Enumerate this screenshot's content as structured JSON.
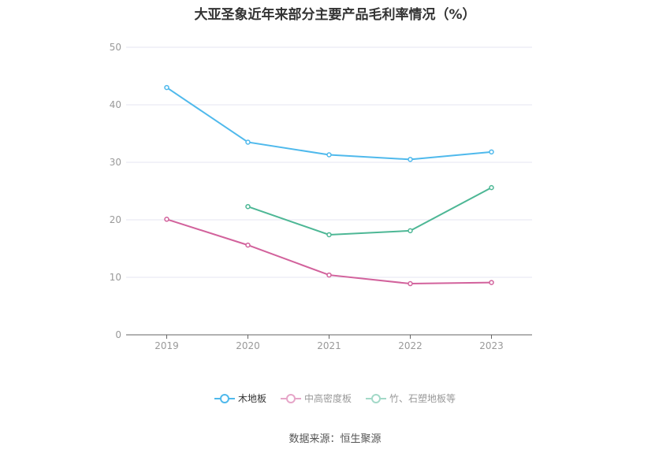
{
  "title": "大亚圣象近年来部分主要产品毛利率情况（%）",
  "source": "数据来源：恒生聚源",
  "chart_data": {
    "type": "line",
    "categories": [
      "2019",
      "2020",
      "2021",
      "2022",
      "2023"
    ],
    "ylim": [
      0,
      50
    ],
    "yticks": [
      0,
      10,
      20,
      30,
      40,
      50
    ],
    "grid": true,
    "legend_position": "bottom",
    "series": [
      {
        "name": "木地板",
        "color": "#4fb9ec",
        "values": [
          43.0,
          33.5,
          31.3,
          30.5,
          31.8
        ]
      },
      {
        "name": "中高密度板",
        "color": "#d2629c",
        "values": [
          20.1,
          15.6,
          10.4,
          8.9,
          9.1
        ]
      },
      {
        "name": "竹、石塑地板等",
        "color": "#4db795",
        "values": [
          null,
          22.3,
          17.4,
          18.1,
          25.6
        ]
      }
    ]
  },
  "legend": [
    {
      "label": "木地板",
      "color": "#4fb9ec"
    },
    {
      "label": "中高密度板",
      "color": "#e6a5c8"
    },
    {
      "label": "竹、石塑地板等",
      "color": "#a3d9c8"
    }
  ]
}
